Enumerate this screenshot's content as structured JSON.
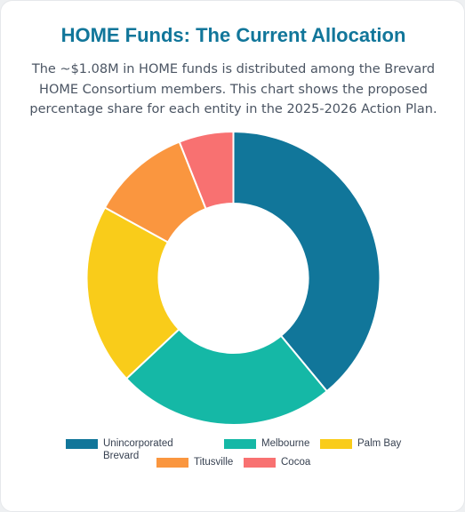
{
  "card": {
    "title": "HOME Funds: The Current Allocation",
    "description": "The ~$1.08M in HOME funds is distributed among the Brevard HOME Consortium members. This chart shows the proposed percentage share for each entity in the 2025-2026 Action Plan."
  },
  "chart_data": {
    "type": "pie",
    "variant": "doughnut",
    "title": "",
    "categories": [
      "Unincorporated Brevard",
      "Melbourne",
      "Palm Bay",
      "Titusville",
      "Cocoa"
    ],
    "values": [
      39,
      24,
      20,
      11,
      6
    ],
    "unit": "percent",
    "colors": [
      "#11769a",
      "#15b8a6",
      "#f9cc1a",
      "#fa963f",
      "#f87171"
    ],
    "legend_position": "bottom"
  }
}
